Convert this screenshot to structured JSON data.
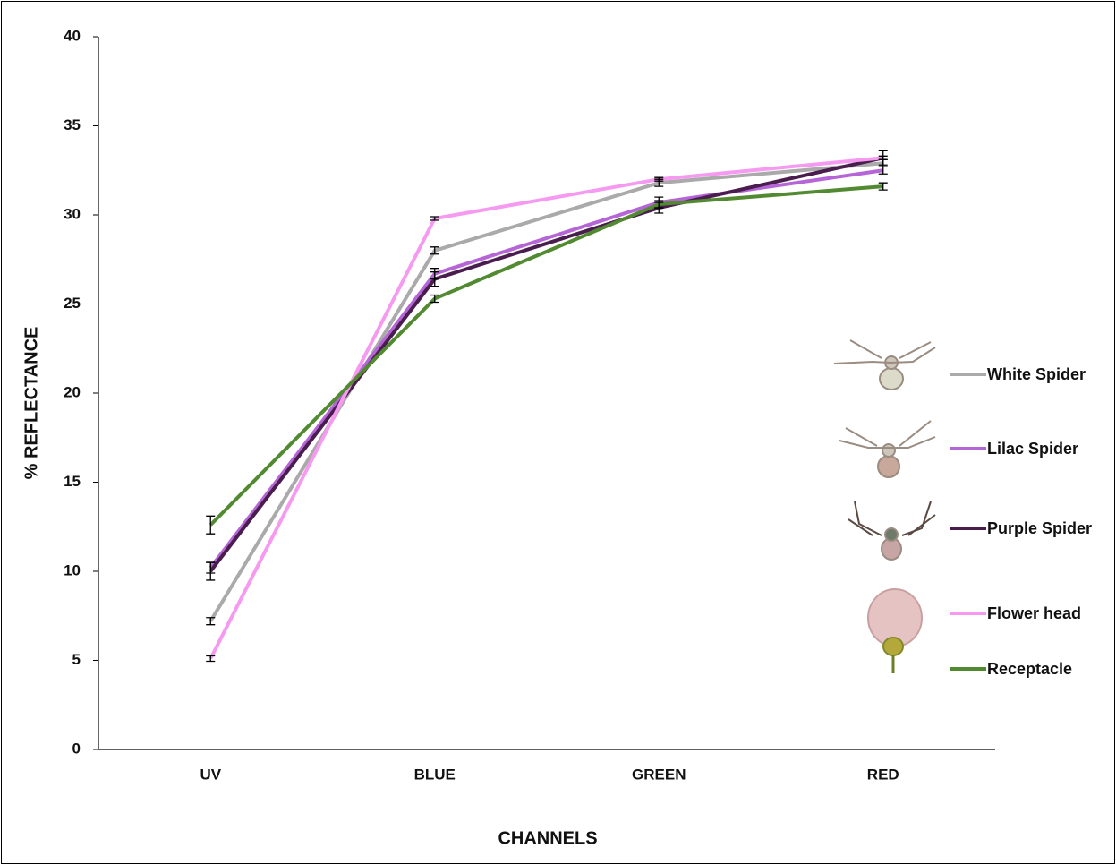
{
  "chart_data": {
    "type": "line",
    "x_label": "CHANNELS",
    "y_label": "% REFLECTANCE",
    "categories": [
      "UV",
      "BLUE",
      "GREEN",
      "RED"
    ],
    "ylim": [
      0,
      40
    ],
    "yticks": [
      0,
      5,
      10,
      15,
      20,
      25,
      30,
      35,
      40
    ],
    "grid": false,
    "legend": "right",
    "series": [
      {
        "name": "White Spider",
        "color": "#aaaaaa",
        "values": [
          7.2,
          28.0,
          31.8,
          32.9
        ],
        "errors": [
          0.2,
          0.2,
          0.2,
          0.2
        ]
      },
      {
        "name": "Lilac Spider",
        "color": "#b565d6",
        "values": [
          10.2,
          26.7,
          30.7,
          32.5
        ],
        "errors": [
          0.3,
          0.3,
          0.3,
          0.2
        ]
      },
      {
        "name": "Purple Spider",
        "color": "#4a1d4f",
        "values": [
          10.0,
          26.4,
          30.4,
          33.2
        ],
        "errors": [
          0.5,
          0.4,
          0.3,
          0.4
        ]
      },
      {
        "name": "Flower head",
        "color": "#f59af0",
        "values": [
          5.1,
          29.8,
          32.0,
          33.2
        ],
        "errors": [
          0.15,
          0.1,
          0.1,
          0.1
        ]
      },
      {
        "name": "Receptacle",
        "color": "#528a31",
        "values": [
          12.6,
          25.3,
          30.6,
          31.6
        ],
        "errors": [
          0.5,
          0.2,
          0.2,
          0.2
        ]
      }
    ]
  }
}
